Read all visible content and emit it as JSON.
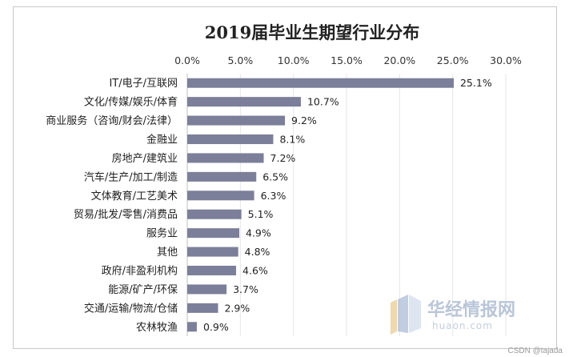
{
  "chart_data": {
    "type": "bar",
    "orientation": "horizontal",
    "title": "2019届毕业生期望行业分布",
    "x_axis_position": "top",
    "xlim": [
      0,
      30
    ],
    "xticks": [
      "0.0%",
      "5.0%",
      "10.0%",
      "15.0%",
      "20.0%",
      "25.0%",
      "30.0%"
    ],
    "grid": true,
    "categories": [
      "IT/电子/互联网",
      "文化/传媒/娱乐/体育",
      "商业服务（咨询/财会/法律）",
      "金融业",
      "房地产/建筑业",
      "汽车/生产/加工/制造",
      "文体教育/工艺美术",
      "贸易/批发/零售/消费品",
      "服务业",
      "其他",
      "政府/非盈利机构",
      "能源/矿产/环保",
      "交通/运输/物流/仓储",
      "农林牧渔"
    ],
    "values": [
      25.1,
      10.7,
      9.2,
      8.1,
      7.2,
      6.5,
      6.3,
      5.1,
      4.9,
      4.8,
      4.6,
      3.7,
      2.9,
      0.9
    ],
    "data_labels": [
      "25.1%",
      "10.7%",
      "9.2%",
      "8.1%",
      "7.2%",
      "6.5%",
      "6.3%",
      "5.1%",
      "4.9%",
      "4.8%",
      "4.6%",
      "3.7%",
      "2.9%",
      "0.9%"
    ],
    "bar_color": "#7b7f99"
  },
  "watermark": {
    "name": "华经情报网",
    "url": "huaon.com"
  },
  "credit": "CSDN @tajada"
}
